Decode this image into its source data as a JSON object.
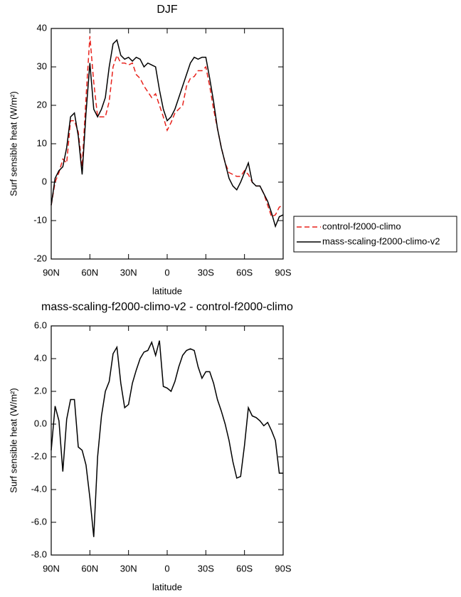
{
  "chart_data": [
    {
      "type": "line",
      "title": "DJF",
      "xlabel": "latitude",
      "ylabel": "Surf sensible heat (W/m²)",
      "x": [
        90,
        87,
        84,
        81,
        78,
        75,
        72,
        69,
        66,
        63,
        60,
        57,
        54,
        51,
        48,
        45,
        42,
        39,
        36,
        33,
        30,
        27,
        24,
        21,
        18,
        15,
        12,
        9,
        6,
        3,
        0,
        -3,
        -6,
        -9,
        -12,
        -15,
        -18,
        -21,
        -24,
        -27,
        -30,
        -33,
        -36,
        -39,
        -42,
        -45,
        -48,
        -51,
        -54,
        -57,
        -60,
        -63,
        -66,
        -69,
        -72,
        -75,
        -78,
        -81,
        -84,
        -87,
        -90
      ],
      "series": [
        {
          "name": "control-f2000-climo",
          "color": "#e8221c",
          "linestyle": "dashed",
          "values": [
            -6,
            0,
            2.5,
            6,
            5,
            16,
            16,
            13,
            4,
            22,
            38,
            26,
            17,
            17,
            17,
            21,
            30,
            33,
            31,
            31,
            30.5,
            31,
            28,
            27,
            25,
            23.5,
            22,
            23,
            20,
            17,
            13.5,
            15.5,
            18,
            19,
            20,
            25,
            27,
            27.5,
            29,
            29,
            30,
            25,
            19,
            14,
            9,
            5,
            2.5,
            2,
            1.5,
            1.5,
            3,
            2,
            0,
            -1,
            -1,
            -3,
            -6,
            -9,
            -8.5,
            -6.5,
            -6
          ]
        },
        {
          "name": "mass-scaling-f2000-climo-v2",
          "color": "#000000",
          "linestyle": "solid",
          "values": [
            -6,
            1,
            3,
            4,
            9,
            17,
            18,
            12,
            2,
            18,
            31,
            19,
            17,
            19,
            22,
            30,
            36,
            37,
            33,
            32,
            32.5,
            31.5,
            32.5,
            32,
            30,
            31,
            30.5,
            30,
            24,
            19,
            16,
            17,
            19,
            22,
            25,
            28,
            31,
            32.5,
            32,
            32.5,
            32.5,
            27,
            21,
            14,
            9,
            5,
            1,
            -1,
            -2,
            0,
            2.5,
            5,
            0,
            -1,
            -1,
            -3,
            -5,
            -8,
            -11.5,
            -9,
            -8.5
          ]
        }
      ],
      "xlim": [
        90,
        -90
      ],
      "xticks": [
        {
          "value": 90,
          "label": "90N"
        },
        {
          "value": 60,
          "label": "60N"
        },
        {
          "value": 30,
          "label": "30N"
        },
        0,
        {
          "value": -30,
          "label": "30S"
        },
        {
          "value": -60,
          "label": "60S"
        },
        {
          "value": -90,
          "label": "90S"
        }
      ],
      "ylim": [
        -20,
        40
      ],
      "yticks": [
        -20,
        -10,
        0,
        10,
        20,
        30,
        40
      ],
      "legend": "outside-right"
    },
    {
      "type": "line",
      "title": "mass-scaling-f2000-climo-v2 - control-f2000-climo",
      "xlabel": "latitude",
      "ylabel": "Surf sensible heat (W/m²)",
      "x": [
        90,
        87,
        84,
        81,
        78,
        75,
        72,
        69,
        66,
        63,
        60,
        57,
        54,
        51,
        48,
        45,
        42,
        39,
        36,
        33,
        30,
        27,
        24,
        21,
        18,
        15,
        12,
        9,
        6,
        3,
        0,
        -3,
        -6,
        -9,
        -12,
        -15,
        -18,
        -21,
        -24,
        -27,
        -30,
        -33,
        -36,
        -39,
        -42,
        -45,
        -48,
        -51,
        -54,
        -57,
        -60,
        -63,
        -66,
        -69,
        -72,
        -75,
        -78,
        -81,
        -84,
        -87,
        -90
      ],
      "series": [
        {
          "color": "#000000",
          "linestyle": "solid",
          "values": [
            -1.6,
            1.1,
            0.2,
            -2.9,
            0.3,
            1.5,
            1.5,
            -1.4,
            -1.6,
            -2.5,
            -4.5,
            -6.9,
            -2,
            0.5,
            2,
            2.6,
            4.3,
            4.7,
            2.5,
            1,
            1.2,
            2.5,
            3.3,
            4,
            4.4,
            4.5,
            5,
            4.2,
            5.1,
            2.3,
            2.2,
            2,
            2.6,
            3.5,
            4.2,
            4.5,
            4.6,
            4.5,
            3.5,
            2.8,
            3.2,
            3.2,
            2.5,
            1.5,
            0.8,
            0,
            -1,
            -2.3,
            -3.3,
            -3.2,
            -1.3,
            1,
            0.5,
            0.4,
            0.2,
            -0.1,
            0.1,
            -0.4,
            -1,
            -3,
            -3
          ]
        }
      ],
      "xlim": [
        90,
        -90
      ],
      "xticks": [
        {
          "value": 90,
          "label": "90N"
        },
        {
          "value": 60,
          "label": "60N"
        },
        {
          "value": 30,
          "label": "30N"
        },
        0,
        {
          "value": -30,
          "label": "30S"
        },
        {
          "value": -60,
          "label": "60S"
        },
        {
          "value": -90,
          "label": "90S"
        }
      ],
      "ylim": [
        -8,
        6
      ],
      "yticks": [
        {
          "value": -8,
          "label": "-8.0"
        },
        {
          "value": -6,
          "label": "-6.0"
        },
        {
          "value": -4,
          "label": "-4.0"
        },
        {
          "value": -2,
          "label": "-2.0"
        },
        {
          "value": 0,
          "label": "0.0"
        },
        {
          "value": 2,
          "label": "2.0"
        },
        {
          "value": 4,
          "label": "4.0"
        },
        {
          "value": 6,
          "label": "6.0"
        }
      ]
    }
  ]
}
